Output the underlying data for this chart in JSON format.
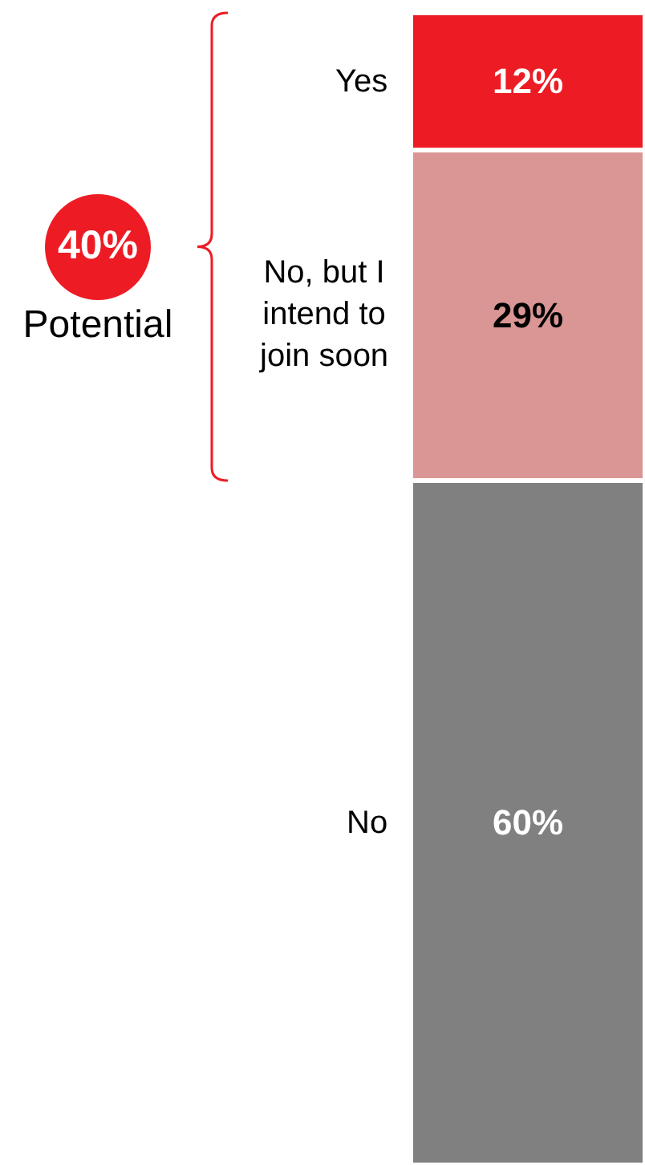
{
  "chart_data": {
    "type": "bar",
    "stacked": true,
    "categories": [
      null
    ],
    "tick_labels": false,
    "legend": false,
    "series": [
      {
        "name": "No",
        "color": "#808080",
        "values": [
          60
        ],
        "value_labels": [
          "60%"
        ]
      },
      {
        "name": "No, but I intend to join soon",
        "color": "#da9694",
        "values": [
          29
        ],
        "value_labels": [
          "29%"
        ]
      },
      {
        "name": "Yes",
        "color": "#ed1c24",
        "values": [
          12
        ],
        "value_labels": [
          "12%"
        ]
      }
    ],
    "annotations": [
      "40%",
      "Potential"
    ]
  }
}
